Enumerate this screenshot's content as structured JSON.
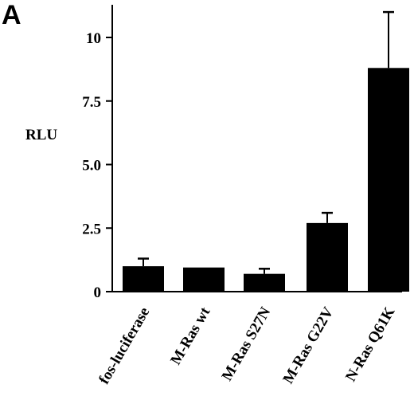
{
  "panel_label": "A",
  "chart_data": {
    "type": "bar",
    "title": "",
    "xlabel": "",
    "ylabel": "RLU",
    "ylim": [
      0,
      11.25
    ],
    "yticks": [
      0,
      2.5,
      5.0,
      7.5,
      10
    ],
    "ytick_labels": [
      "0",
      "2.5",
      "5.0",
      "7.5",
      "10"
    ],
    "categories": [
      "fos-luciferase",
      "M-Ras wt",
      "M-Ras S27N",
      "M-Ras G22V",
      "N-Ras Q61K"
    ],
    "values": [
      1.0,
      0.95,
      0.7,
      2.7,
      8.8
    ],
    "error_upper": [
      0.3,
      0.0,
      0.2,
      0.4,
      2.2
    ],
    "grid": false,
    "legend": "none",
    "bar_color": "#000000"
  }
}
